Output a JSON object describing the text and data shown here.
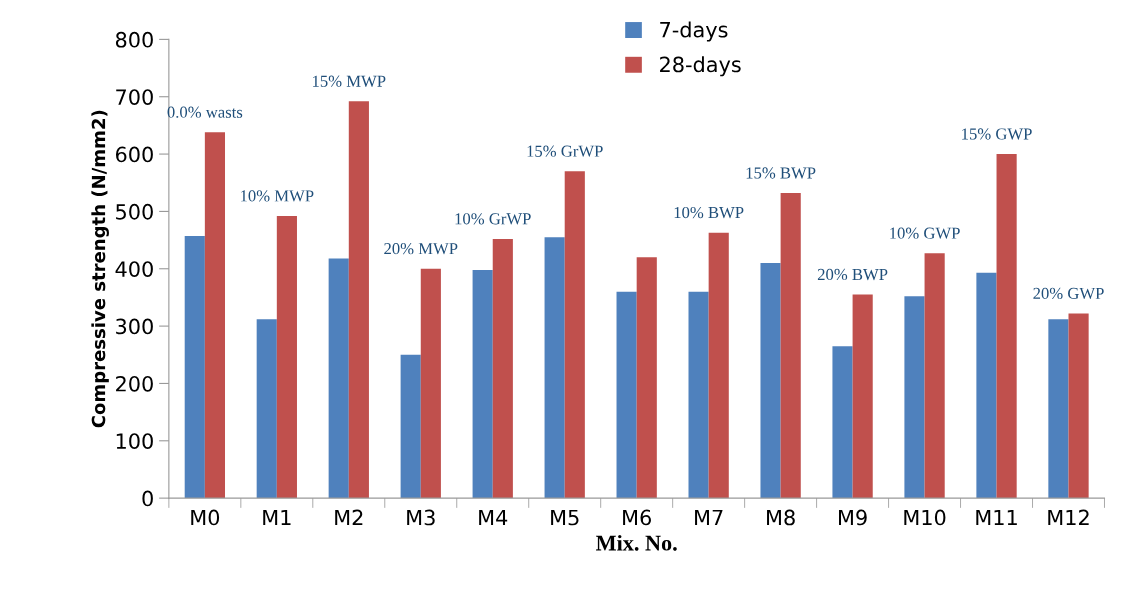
{
  "chart_data": {
    "type": "bar",
    "xlabel": "Mix. No.",
    "ylabel": "Compressive strength (N/mm2)",
    "categories": [
      "M0",
      "M1",
      "M2",
      "M3",
      "M4",
      "M5",
      "M6",
      "M7",
      "M8",
      "M9",
      "M10",
      "M11",
      "M12"
    ],
    "series": [
      {
        "name": "7-days",
        "color": "#4f81bd",
        "values": [
          457,
          312,
          418,
          250,
          398,
          455,
          360,
          360,
          410,
          265,
          352,
          393,
          312
        ]
      },
      {
        "name": "28-days",
        "color": "#c0504d",
        "values": [
          638,
          492,
          692,
          400,
          452,
          570,
          420,
          463,
          532,
          355,
          427,
          600,
          322
        ]
      }
    ],
    "ylim": [
      0,
      800
    ],
    "yticks": [
      0,
      100,
      200,
      300,
      400,
      500,
      600,
      700,
      800
    ],
    "grid": false,
    "legend": "top",
    "annotations": [
      {
        "text": "0.0% wasts",
        "x": "M0",
        "y": 638
      },
      {
        "text": "10% MWP",
        "x": "M1",
        "y": 492
      },
      {
        "text": "15% MWP",
        "x": "M2",
        "y": 692
      },
      {
        "text": "20% MWP",
        "x": "M3",
        "y": 400
      },
      {
        "text": "10% GrWP",
        "x": "M4",
        "y": 452
      },
      {
        "text": "15% GrWP",
        "x": "M5",
        "y": 570
      },
      {
        "text": "10% BWP",
        "x": "M7",
        "y": 463
      },
      {
        "text": "15% BWP",
        "x": "M8",
        "y": 532
      },
      {
        "text": "20% BWP",
        "x": "M9",
        "y": 355
      },
      {
        "text": "10% GWP",
        "x": "M10",
        "y": 427
      },
      {
        "text": "15% GWP",
        "x": "M11",
        "y": 600
      },
      {
        "text": "20% GWP",
        "x": "M12",
        "y": 322
      }
    ]
  }
}
